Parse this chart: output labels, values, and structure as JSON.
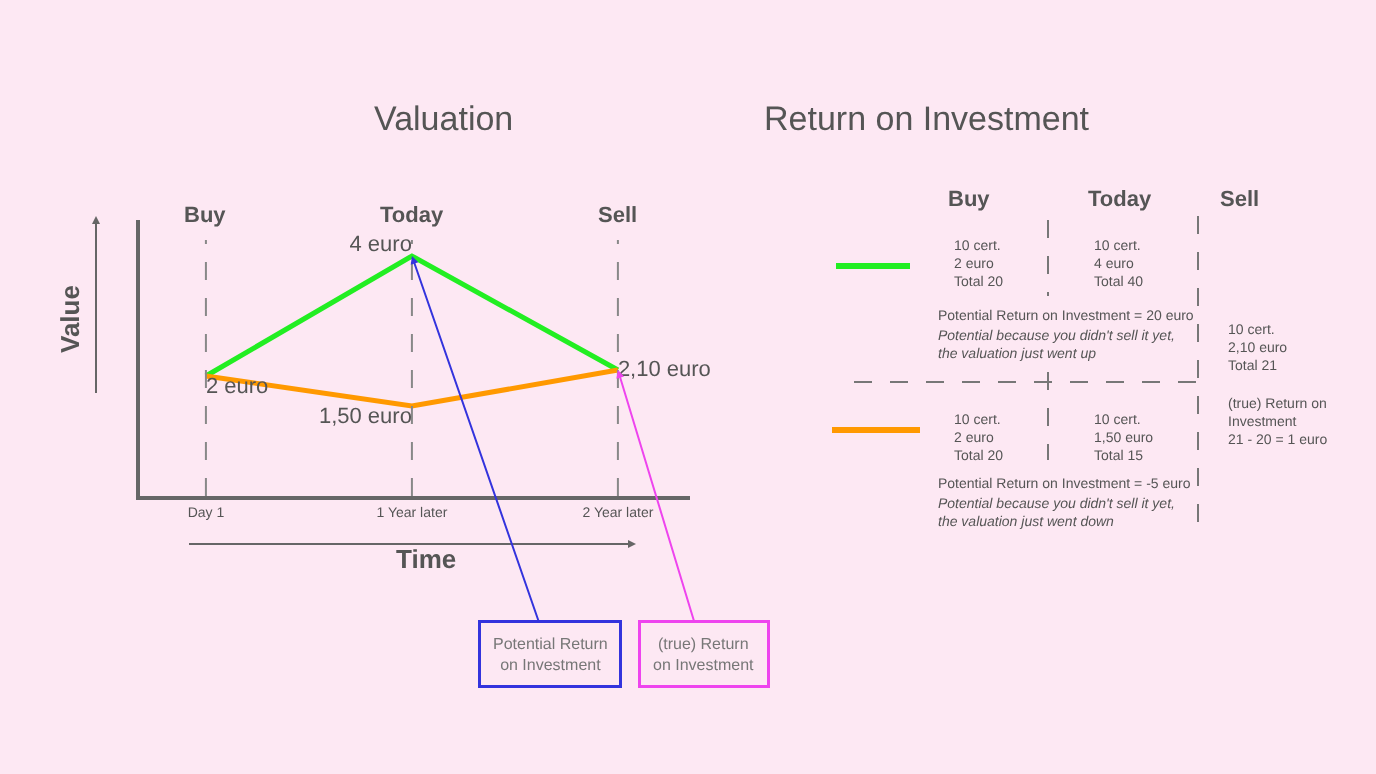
{
  "chart_data": [
    {
      "type": "line",
      "title": "Valuation",
      "xlabel": "Time",
      "ylabel": "Value",
      "x": [
        0,
        1,
        2
      ],
      "ylim": [
        0,
        4.6
      ],
      "xlim": [
        -0.32,
        2.35
      ],
      "xticks": [
        {
          "value": 0,
          "label": "Day 1"
        },
        {
          "value": 1,
          "label": "1 Year later"
        },
        {
          "value": 2,
          "label": "2 Year later"
        }
      ],
      "tick_labels": "x",
      "grid": false,
      "marker": "none",
      "line_style": "solid",
      "series": [
        {
          "color": "#22ee22",
          "values": [
            2,
            4,
            2.1
          ],
          "value_labels": [
            null,
            "4 euro",
            "2,10 euro"
          ]
        },
        {
          "color": "#ff9900",
          "values": [
            2,
            1.5,
            2.1
          ],
          "value_labels": [
            "2 euro",
            "1,50 euro",
            null
          ]
        }
      ],
      "ref_lines": [
        {
          "axis": "x",
          "value": 0,
          "label": "Buy",
          "color": "#888888",
          "line_style": "dashed"
        },
        {
          "axis": "x",
          "value": 1,
          "label": "Today",
          "color": "#888888",
          "line_style": "dashed"
        },
        {
          "axis": "x",
          "value": 2,
          "label": "Sell",
          "color": "#888888",
          "line_style": "dashed"
        }
      ],
      "annotations": [
        {
          "text": "Potential Return on Investment",
          "x": 1,
          "y": 4
        },
        {
          "text": "(true) Return on Investment",
          "x": 2,
          "y": 2.1
        }
      ]
    },
    {
      "type": "other",
      "title": "Return on Investment",
      "annotations": [
        "Buy",
        "Today",
        "Sell",
        "10 cert.\n2 euro\nTotal 20",
        "10 cert.\n4 euro\nTotal 40",
        "Potential Return on Investment = 20 euro",
        "Potential because you didn't sell it yet,\nthe valuation just went up",
        "10 cert.\n2,10 euro\nTotal 21",
        "10 cert.\n2 euro\nTotal 20",
        "10 cert.\n1,50 euro\nTotal 15",
        "Potential Return on Investment = -5 euro",
        "Potential because you didn't sell it yet,\nthe valuation just went down",
        "(true) Return on\nInvestment\n21 - 20 = 1 euro"
      ]
    }
  ]
}
